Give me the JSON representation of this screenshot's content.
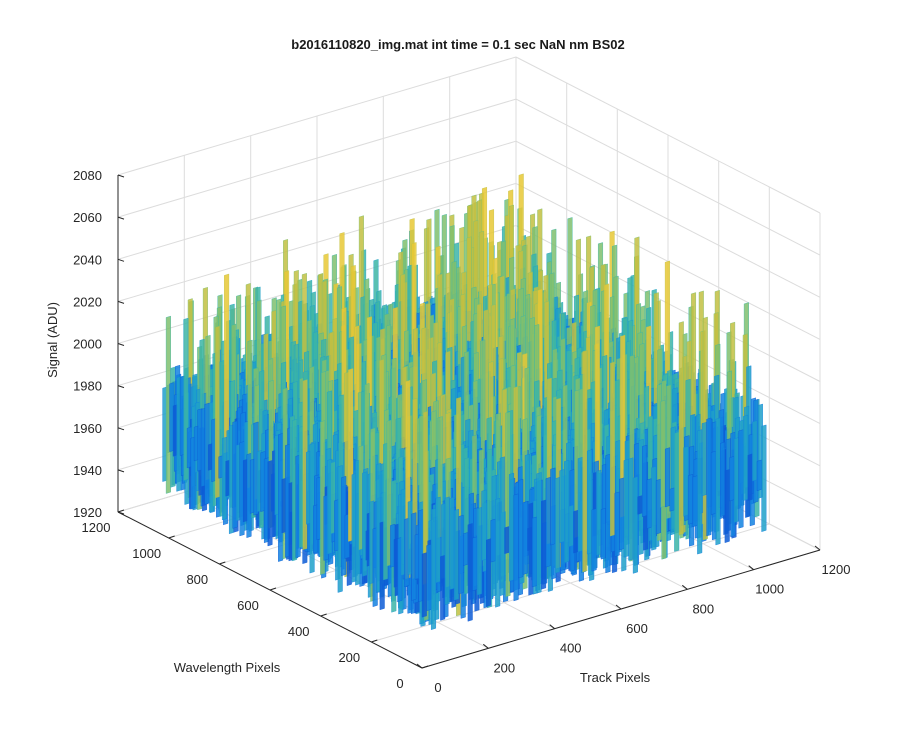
{
  "chart_data": {
    "type": "surface",
    "title": "b2016110820_img.mat int time = 0.1 sec  NaN nm BS02",
    "xlabel": "Track Pixels",
    "ylabel": "Wavelength Pixels",
    "zlabel": "Signal (ADU)",
    "xlim": [
      0,
      1200
    ],
    "ylim": [
      0,
      1200
    ],
    "zlim": [
      1920,
      2080
    ],
    "xticks": [
      "0",
      "200",
      "400",
      "600",
      "800",
      "1000",
      "1200"
    ],
    "yticks": [
      "0",
      "200",
      "400",
      "600",
      "800",
      "1000",
      "1200"
    ],
    "zticks": [
      "1920",
      "1940",
      "1960",
      "1980",
      "2000",
      "2020",
      "2040",
      "2060",
      "2080"
    ],
    "data_extent": {
      "x": [
        0,
        1024
      ],
      "y": [
        0,
        1024
      ]
    },
    "signal_base": 1985,
    "signal_range": [
      1935,
      2075
    ],
    "grid": true,
    "colormap": "parula",
    "colormap_colors": [
      "#0d5cd6",
      "#1282e0",
      "#1ea0c9",
      "#3cb5a6",
      "#7fbf6e",
      "#c2c042",
      "#e8c835"
    ]
  }
}
